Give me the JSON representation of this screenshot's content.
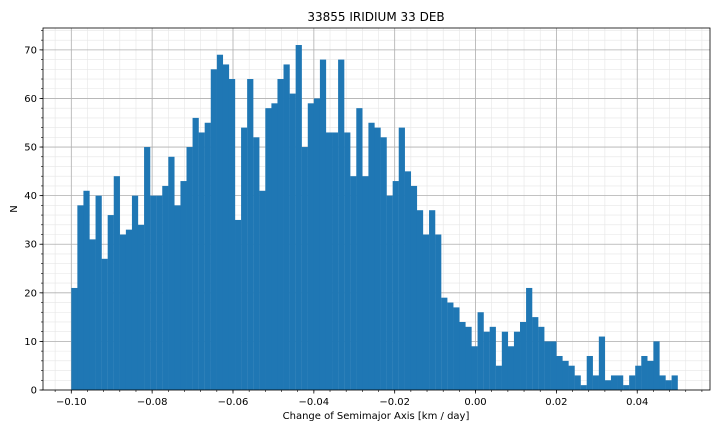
{
  "chart_data": {
    "type": "bar",
    "title": "33855 IRIDIUM 33 DEB",
    "xlabel": "Change of Semimajor Axis [km / day]",
    "ylabel": "N",
    "xlim": [
      -0.107,
      0.058
    ],
    "ylim": [
      0,
      74.5
    ],
    "bin_start": -0.1,
    "bin_width": 0.0015,
    "values": [
      21,
      38,
      41,
      31,
      40,
      27,
      36,
      44,
      32,
      33,
      40,
      34,
      50,
      40,
      40,
      42,
      48,
      38,
      43,
      50,
      56,
      53,
      55,
      66,
      69,
      67,
      64,
      35,
      54,
      64,
      52,
      41,
      58,
      59,
      64,
      67,
      61,
      71,
      50,
      59,
      60,
      68,
      53,
      53,
      68,
      53,
      44,
      58,
      44,
      55,
      54,
      52,
      40,
      43,
      54,
      45,
      42,
      37,
      32,
      37,
      32,
      19,
      18,
      17,
      14,
      13,
      9,
      16,
      12,
      13,
      5,
      12,
      9,
      12,
      14,
      21,
      15,
      13,
      10,
      10,
      7,
      6,
      5,
      3,
      1,
      7,
      3,
      11,
      2,
      3,
      3,
      1,
      3,
      5,
      7,
      6,
      10,
      3,
      2,
      3
    ],
    "xticks": [
      -0.1,
      -0.08,
      -0.06,
      -0.04,
      -0.02,
      0.0,
      0.02,
      0.04
    ],
    "xtick_labels": [
      "−0.10",
      "−0.08",
      "−0.06",
      "−0.04",
      "−0.02",
      "0.00",
      "0.02",
      "0.04"
    ],
    "yticks": [
      0,
      10,
      20,
      30,
      40,
      50,
      60,
      70
    ],
    "ytick_labels": [
      "0",
      "10",
      "20",
      "30",
      "40",
      "50",
      "60",
      "70"
    ],
    "x_minor_step": 0.004,
    "y_minor_step": 2,
    "grid": true,
    "bar_color": "#1f77b4",
    "grid_major_color": "#b0b0b0",
    "grid_minor_color": "#e6e6e6"
  }
}
